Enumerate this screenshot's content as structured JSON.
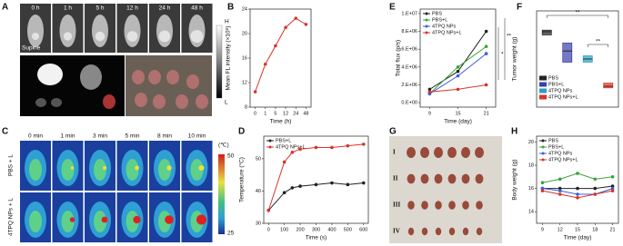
{
  "panel_a": {
    "label": "A",
    "time_labels": [
      "0 h",
      "1 h",
      "5 h",
      "12 h",
      "24 h",
      "48 h"
    ],
    "position": "Supine",
    "scale_high": "H",
    "scale_low": "L"
  },
  "panel_c": {
    "label": "C",
    "time_labels": [
      "0 min",
      "1 min",
      "3 min",
      "5 min",
      "8 min",
      "10 min"
    ],
    "row_labels": [
      "PBS + L",
      "4TPQ NPs + L"
    ],
    "scale_unit": "(℃)",
    "scale_max": 50,
    "scale_min": 25
  },
  "panel_g": {
    "label": "G",
    "row_labels": [
      "I",
      "II",
      "III",
      "IV"
    ]
  },
  "chart_data": [
    {
      "panel": "B",
      "type": "line",
      "x_label": "Time (h)",
      "y_label": "Mean FL intensity (×10⁸)",
      "categories": [
        "0",
        "1",
        "5",
        "12",
        "24",
        "48"
      ],
      "values": [
        10.5,
        15,
        18,
        21,
        22.5,
        21.5
      ],
      "color": "#d9332a",
      "ylim": [
        8,
        24
      ],
      "yticks": [
        8,
        12,
        16,
        20,
        24
      ]
    },
    {
      "panel": "D",
      "type": "line",
      "x_label": "Time (s)",
      "y_label": "Temperature (°C)",
      "x": [
        0,
        100,
        150,
        200,
        300,
        400,
        500,
        600
      ],
      "xlim": [
        -30,
        630
      ],
      "xticks": [
        0,
        100,
        200,
        300,
        400,
        500,
        600
      ],
      "ylim": [
        30,
        57
      ],
      "yticks": [
        30,
        40,
        50
      ],
      "legend": "upper left",
      "series": [
        {
          "name": "PBS+L",
          "color": "#222222",
          "values": [
            34,
            39.5,
            41,
            41.5,
            42,
            42.5,
            42,
            42.5
          ]
        },
        {
          "name": "4TPQ NPs+L",
          "color": "#d9332a",
          "values": [
            34,
            49,
            52,
            53,
            53.5,
            53.5,
            54,
            54.5
          ]
        }
      ]
    },
    {
      "panel": "E",
      "type": "line",
      "x_label": "Time (day)",
      "y_label": "Total flux (p/s)",
      "x": [
        9,
        15,
        21
      ],
      "xlim": [
        7,
        23
      ],
      "xticks": [
        9,
        15,
        21
      ],
      "ylim": [
        -500000,
        10500000
      ],
      "yticks": [
        {
          "value": 0,
          "label": "0.E+00"
        },
        {
          "value": 2000000,
          "label": "2.E+06"
        },
        {
          "value": 4000000,
          "label": "4.E+06"
        },
        {
          "value": 6000000,
          "label": "6.E+06"
        },
        {
          "value": 8000000,
          "label": "8.E+06"
        },
        {
          "value": 10000000,
          "label": "1.E+07"
        }
      ],
      "legend": "upper left",
      "annotations": [
        "*",
        "**"
      ],
      "series": [
        {
          "name": "PBS",
          "color": "#222222",
          "values": [
            1500000,
            3500000,
            8000000
          ]
        },
        {
          "name": "PBS+L",
          "color": "#3aa53a",
          "values": [
            1000000,
            4000000,
            6300000
          ]
        },
        {
          "name": "4TPQ NPs",
          "color": "#3b5fd9",
          "values": [
            1000000,
            3000000,
            5500000
          ]
        },
        {
          "name": "4TPQ NPs+L",
          "color": "#d9332a",
          "values": [
            1200000,
            1500000,
            2000000
          ]
        }
      ]
    },
    {
      "panel": "F",
      "type": "box",
      "y_label": "Tumor weight (g)",
      "categories": [
        "PBS",
        "PBS+L",
        "4TPQ NPs",
        "4TPQ NPs+L"
      ],
      "colors": [
        "#222222",
        "#3b3fa8",
        "#2a9fc4",
        "#d9332a"
      ],
      "q1": [
        0.7,
        0.53,
        0.53,
        0.37
      ],
      "median": [
        0.72,
        0.6,
        0.55,
        0.38
      ],
      "q3": [
        0.73,
        0.65,
        0.57,
        0.4
      ],
      "ylim": [
        0.25,
        0.85
      ],
      "legend": "lower left",
      "annotations": [
        "**",
        "**"
      ]
    },
    {
      "panel": "H",
      "type": "line",
      "x_label": "Time (day)",
      "y_label": "Body weight (g)",
      "x": [
        9,
        12,
        15,
        18,
        21
      ],
      "xlim": [
        8,
        22
      ],
      "xticks": [
        9,
        12,
        15,
        18,
        21
      ],
      "ylim": [
        13,
        20.5
      ],
      "yticks": [
        14,
        16,
        18,
        20
      ],
      "legend": "upper left",
      "series": [
        {
          "name": "PBS",
          "color": "#222222",
          "values": [
            16,
            16,
            16,
            16,
            16.2
          ]
        },
        {
          "name": "PBS+L",
          "color": "#3aa53a",
          "values": [
            16.5,
            16.8,
            17.3,
            16.8,
            17
          ]
        },
        {
          "name": "4TPQ NPs",
          "color": "#3b5fd9",
          "values": [
            16,
            15.8,
            15.5,
            15.5,
            16
          ]
        },
        {
          "name": "4TPQ NPs+L",
          "color": "#d9332a",
          "values": [
            15.8,
            15.5,
            15.2,
            15.5,
            15.8
          ]
        }
      ]
    }
  ]
}
